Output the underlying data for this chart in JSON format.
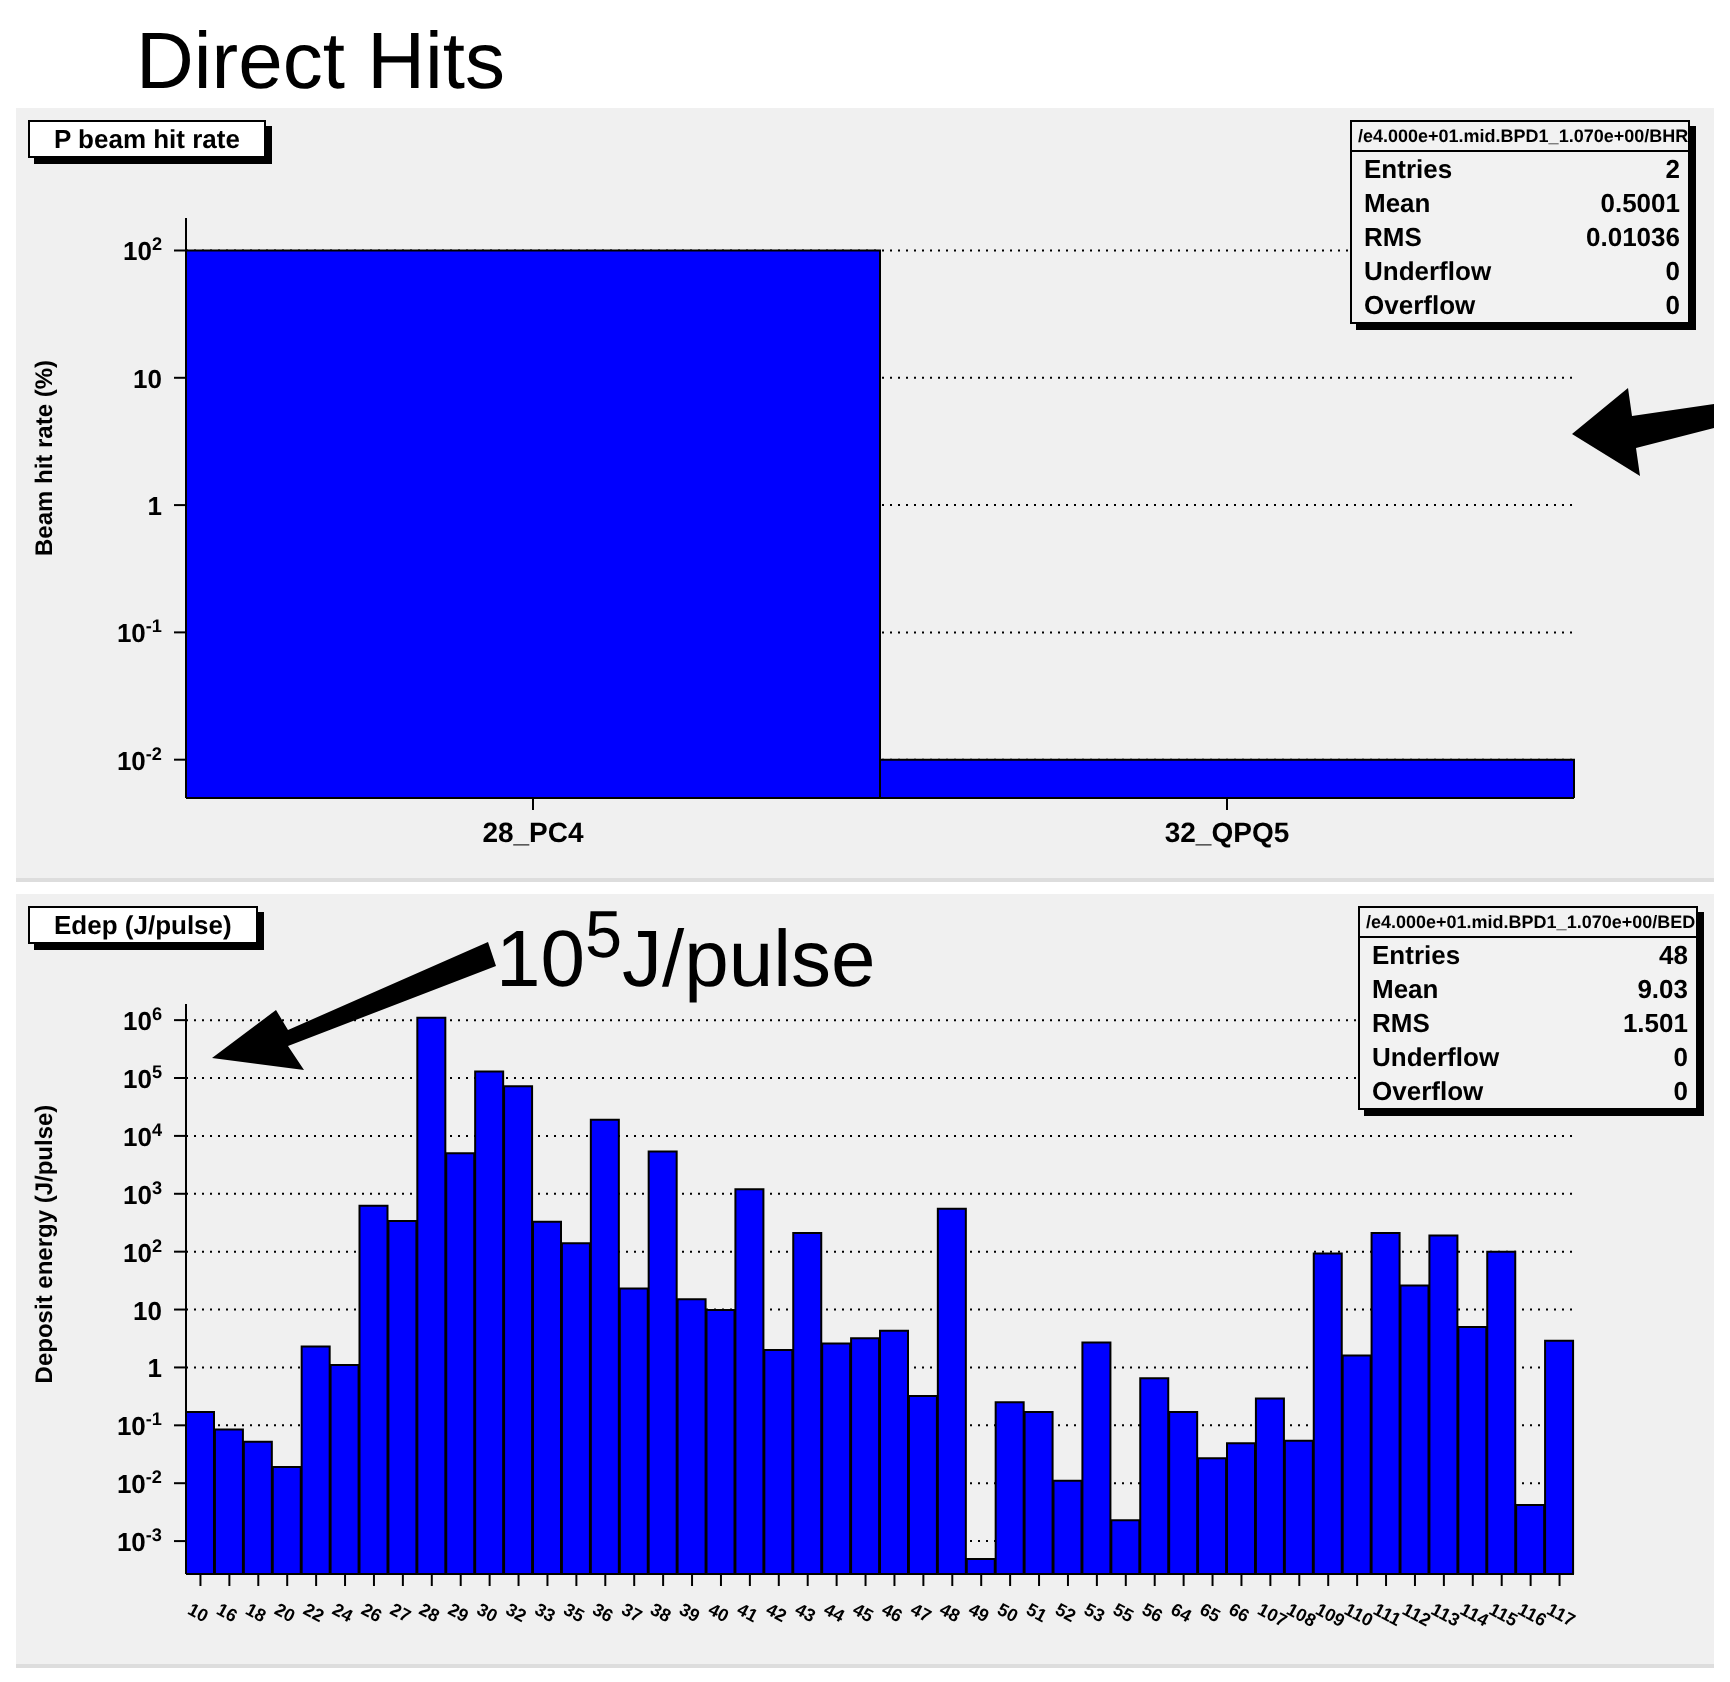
{
  "chart_data": [
    {
      "type": "bar",
      "title": "Direct Hits",
      "subtitle": "P beam hit rate",
      "ylabel": "Beam hit rate (%)",
      "categories": [
        "28_PC4",
        "32_QPQ5"
      ],
      "values": [
        100,
        0.01
      ],
      "color": "#0000ff",
      "log": true,
      "ylim": [
        0.005,
        180
      ],
      "yticks": [
        {
          "value": 0.01,
          "label": "10$^{-2}$"
        },
        {
          "value": 0.1,
          "label": "10$^{-1}$"
        },
        {
          "value": 1,
          "label": "1"
        },
        {
          "value": 10,
          "label": "10"
        },
        {
          "value": 100,
          "label": "10$^{2}$"
        }
      ],
      "grid": "y",
      "annotations": [
        "/e4.000e+01.mid.BPD1_1.070e+00/BHR",
        "Entries",
        "2",
        "Mean",
        "0.5001",
        "RMS",
        "0.01036",
        "Underflow",
        "0",
        "Overflow",
        "0"
      ]
    },
    {
      "type": "bar",
      "subtitle": "Edep (J/pulse)",
      "ylabel": "Deposit energy (J/pulse)",
      "categories": [
        "10",
        "16",
        "18",
        "20",
        "22",
        "24",
        "26",
        "27",
        "28",
        "29",
        "30",
        "32",
        "33",
        "35",
        "36",
        "37",
        "38",
        "39",
        "40",
        "41",
        "42",
        "43",
        "44",
        "45",
        "46",
        "47",
        "48",
        "49",
        "50",
        "51",
        "52",
        "53",
        "55",
        "56",
        "64",
        "65",
        "66",
        "107",
        "108",
        "109",
        "110",
        "111",
        "112",
        "113",
        "114",
        "115",
        "116",
        "117"
      ],
      "values": [
        0.17,
        0.085,
        0.052,
        0.019,
        2.3,
        1.1,
        620,
        340,
        1100000,
        5000,
        130000,
        72000,
        330,
        140,
        19000,
        23,
        5400,
        15,
        9.8,
        1200,
        2.0,
        210,
        2.6,
        3.2,
        4.3,
        0.32,
        550,
        0.00049,
        0.25,
        0.17,
        0.011,
        2.7,
        0.0023,
        0.65,
        0.17,
        0.027,
        0.049,
        0.29,
        0.054,
        93,
        1.6,
        210,
        26,
        190,
        5.0,
        100,
        0.0042,
        2.9
      ],
      "color": "#0000ff",
      "log": true,
      "ylim": [
        0.00027,
        1900000
      ],
      "yticks": [
        {
          "value": 0.001,
          "label": "10$^{-3}$"
        },
        {
          "value": 0.01,
          "label": "10$^{-2}$"
        },
        {
          "value": 0.1,
          "label": "10$^{-1}$"
        },
        {
          "value": 1,
          "label": "1"
        },
        {
          "value": 10,
          "label": "10"
        },
        {
          "value": 100,
          "label": "10$^{2}$"
        },
        {
          "value": 1000,
          "label": "10$^{3}$"
        },
        {
          "value": 10000,
          "label": "10$^{4}$"
        },
        {
          "value": 100000,
          "label": "10$^{5}$"
        },
        {
          "value": 1000000,
          "label": "10$^{6}$"
        }
      ],
      "grid": "y",
      "annotations": [
        "/e4.000e+01.mid.BPD1_1.070e+00/BED",
        "Entries",
        "48",
        "Mean",
        "9.03",
        "RMS",
        "1.501",
        "Underflow",
        "0",
        "Overflow",
        "0",
        "10$^{5}$J/pulse"
      ]
    }
  ]
}
